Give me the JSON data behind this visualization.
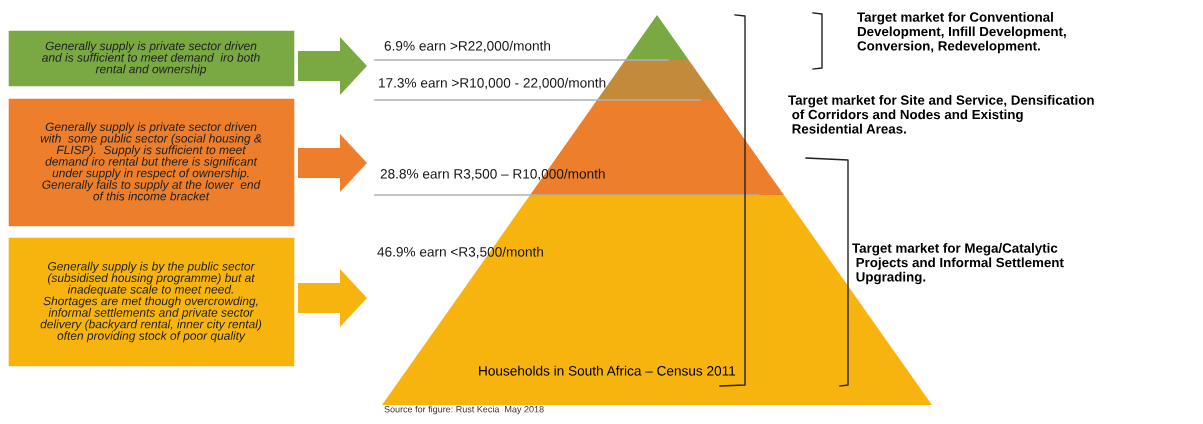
{
  "chart_data": {
    "type": "other",
    "title": "Households in South Africa – Census 2011",
    "categories": [
      "% earn >R22,000/month",
      "% earn >R10,000 - 22,000/month",
      "% earn R3,500 – R10,000/month",
      "% earn <R3,500/month"
    ],
    "values": [
      6.9,
      17.3,
      28.8,
      46.9
    ],
    "data_labels": true,
    "colors": [
      "#7aa843",
      "#c48a3c",
      "#ec7e2c",
      "#f8b40e"
    ],
    "annotations": [
      "Generally supply is private sector driven\nand is sufficient to meet demand  iro both\nrental and ownership",
      "Generally supply is private sector driven\nwith  some public sector (social housing &\nFLISP).  Supply is sufficient to meet\ndemand iro rental but there is significant\nunder supply in respect of ownership.\nGenerally fails to supply at the lower  end\nof this income bracket",
      "Generally supply is by the public sector\n(subsidised housing programme) but at\ninadequate scale to meet need.\nShortages are met though overcrowding,\ninformal settlements and private sector\ndelivery (backyard rental, inner city rental)\noften providing stock of poor quality",
      "Target market for Conventional\nDevelopment, Infill Development,\nConversion, Redevelopment.",
      "Target market for Site and Service, Densification\n of Corridors and Nodes and Existing\n Residential Areas.",
      "Target market for Mega/Catalytic\n Projects and Informal Settlement\n Upgrading.",
      "Source for figure: Rust Kecia  May 2018"
    ]
  }
}
